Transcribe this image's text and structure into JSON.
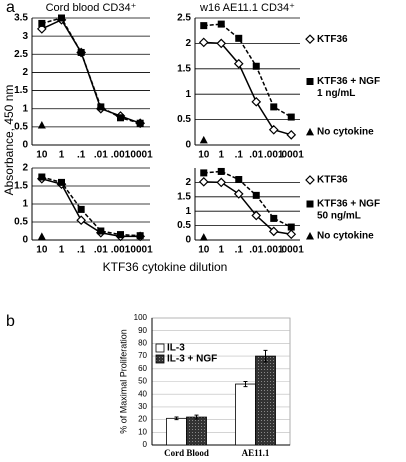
{
  "figure": {
    "panel_labels": [
      "a",
      "b"
    ],
    "y_label": "Absorbance, 450 nm",
    "x_label": "KTF36 cytokine dilution"
  },
  "chart_data": [
    {
      "type": "line",
      "title": "Cord blood CD34⁺",
      "categories": [
        "10",
        "1",
        ".1",
        ".01",
        ".001",
        ".0001"
      ],
      "ylim": [
        0,
        3.5
      ],
      "yticks": [
        0,
        0.5,
        1,
        1.5,
        2,
        2.5,
        3,
        3.5
      ],
      "grid": true,
      "legend": false,
      "series": [
        {
          "color": "#000000",
          "marker": "diamond",
          "dash": false,
          "values": [
            3.2,
            3.45,
            2.55,
            1.0,
            0.8,
            0.6
          ]
        },
        {
          "color": "#000000",
          "marker": "square",
          "dash": true,
          "values": [
            3.35,
            3.5,
            2.55,
            1.05,
            0.75,
            0.6
          ]
        },
        {
          "color": "#000000",
          "marker": "triangle",
          "dash": false,
          "values": [
            0.55,
            null,
            null,
            null,
            null,
            null
          ]
        }
      ]
    },
    {
      "type": "line",
      "title": "w16 AE11.1 CD34⁺",
      "categories": [
        "10",
        "1",
        ".1",
        ".01",
        ".001",
        ".0001"
      ],
      "ylim": [
        0,
        2.5
      ],
      "yticks": [
        0,
        0.5,
        1,
        1.5,
        2,
        2.5
      ],
      "grid": true,
      "legend": true,
      "series": [
        {
          "name": "KTF36",
          "color": "#000000",
          "marker": "diamond",
          "dash": false,
          "values": [
            2.02,
            2.0,
            1.6,
            0.85,
            0.3,
            0.2
          ]
        },
        {
          "name": "KTF36 + NGF",
          "dose": "1 ng/mL",
          "color": "#000000",
          "marker": "square",
          "dash": true,
          "values": [
            2.35,
            2.38,
            2.1,
            1.55,
            0.75,
            0.55
          ]
        },
        {
          "name": "No cytokine",
          "color": "#000000",
          "marker": "triangle",
          "dash": false,
          "values": [
            0.1,
            null,
            null,
            null,
            null,
            null
          ]
        }
      ]
    },
    {
      "type": "line",
      "categories": [
        "10",
        "1",
        ".1",
        ".01",
        ".001",
        ".0001"
      ],
      "ylim": [
        0,
        2
      ],
      "yticks": [
        0,
        0.5,
        1,
        1.5,
        2
      ],
      "grid": true,
      "legend": false,
      "series": [
        {
          "color": "#000000",
          "marker": "diamond",
          "dash": false,
          "values": [
            1.7,
            1.55,
            0.55,
            0.2,
            0.1,
            0.1
          ]
        },
        {
          "color": "#000000",
          "marker": "square",
          "dash": true,
          "values": [
            1.75,
            1.6,
            0.85,
            0.25,
            0.15,
            0.12
          ]
        },
        {
          "color": "#000000",
          "marker": "triangle",
          "dash": false,
          "values": [
            0.1,
            null,
            null,
            null,
            null,
            null
          ]
        }
      ]
    },
    {
      "type": "line",
      "categories": [
        "10",
        "1",
        ".1",
        ".01",
        ".001",
        ".0001"
      ],
      "ylim": [
        0,
        2.5
      ],
      "yticks": [
        0,
        0.5,
        1,
        1.5,
        2
      ],
      "grid": true,
      "legend": true,
      "series": [
        {
          "name": "KTF36",
          "color": "#000000",
          "marker": "diamond",
          "dash": false,
          "values": [
            2.02,
            2.0,
            1.6,
            0.85,
            0.3,
            0.2
          ]
        },
        {
          "name": "KTF36 + NGF",
          "dose": "50 ng/mL",
          "color": "#000000",
          "marker": "square",
          "dash": true,
          "values": [
            2.33,
            2.38,
            2.1,
            1.55,
            0.75,
            0.45
          ]
        },
        {
          "name": "No cytokine",
          "color": "#000000",
          "marker": "triangle",
          "dash": false,
          "values": [
            0.1,
            null,
            null,
            null,
            null,
            null
          ]
        }
      ]
    },
    {
      "type": "bar",
      "y_label": "% of Maximal Proliferation",
      "categories": [
        "Cord Blood",
        "AE11.1"
      ],
      "ylim": [
        0,
        100
      ],
      "yticks": [
        0,
        10,
        20,
        30,
        40,
        50,
        60,
        70,
        80,
        90,
        100
      ],
      "grid": true,
      "legend": true,
      "series": [
        {
          "name": "IL-3",
          "color": "#ffffff",
          "values": [
            21,
            48
          ],
          "errors": [
            1,
            2
          ]
        },
        {
          "name": "IL-3 + NGF",
          "color": "#333333",
          "values": [
            22,
            70
          ],
          "errors": [
            1.5,
            4.5
          ]
        }
      ]
    }
  ]
}
